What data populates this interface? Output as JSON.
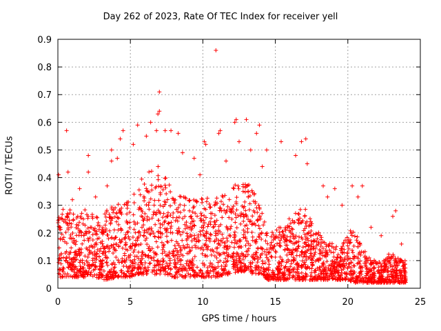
{
  "chart_data": {
    "type": "scatter",
    "title": "Day 262 of 2023, Rate Of TEC Index for receiver yell",
    "xlabel": "GPS time / hours",
    "ylabel": "ROTI / TECUs",
    "xlim": [
      0,
      25
    ],
    "ylim": [
      0,
      0.9
    ],
    "xticks": [
      0,
      5,
      10,
      15,
      20,
      25
    ],
    "yticks": [
      0,
      0.1,
      0.2,
      0.3,
      0.4,
      0.5,
      0.6,
      0.7,
      0.8,
      0.9
    ],
    "grid": true,
    "marker": "+",
    "color": "#ff0000",
    "series": [
      {
        "points": [
          [
            0.05,
            0.41
          ],
          [
            0.3,
            0.25
          ],
          [
            0.6,
            0.57
          ],
          [
            0.7,
            0.42
          ],
          [
            1.0,
            0.32
          ],
          [
            1.5,
            0.36
          ],
          [
            2.1,
            0.48
          ],
          [
            2.1,
            0.42
          ],
          [
            2.6,
            0.33
          ],
          [
            3.4,
            0.37
          ],
          [
            3.7,
            0.5
          ],
          [
            3.7,
            0.46
          ],
          [
            4.1,
            0.47
          ],
          [
            4.3,
            0.54
          ],
          [
            4.5,
            0.57
          ],
          [
            5.2,
            0.52
          ],
          [
            5.5,
            0.59
          ],
          [
            6.1,
            0.55
          ],
          [
            6.4,
            0.6
          ],
          [
            6.8,
            0.57
          ],
          [
            6.9,
            0.63
          ],
          [
            7.0,
            0.64
          ],
          [
            7.0,
            0.71
          ],
          [
            7.4,
            0.57
          ],
          [
            7.8,
            0.57
          ],
          [
            8.3,
            0.56
          ],
          [
            8.6,
            0.49
          ],
          [
            9.4,
            0.47
          ],
          [
            9.8,
            0.41
          ],
          [
            10.1,
            0.53
          ],
          [
            10.2,
            0.52
          ],
          [
            10.9,
            0.86
          ],
          [
            11.1,
            0.56
          ],
          [
            11.2,
            0.57
          ],
          [
            11.6,
            0.46
          ],
          [
            12.2,
            0.6
          ],
          [
            12.3,
            0.61
          ],
          [
            12.5,
            0.53
          ],
          [
            13.0,
            0.61
          ],
          [
            13.3,
            0.5
          ],
          [
            13.7,
            0.56
          ],
          [
            13.9,
            0.59
          ],
          [
            14.4,
            0.5
          ],
          [
            14.1,
            0.44
          ],
          [
            15.4,
            0.53
          ],
          [
            16.4,
            0.48
          ],
          [
            16.8,
            0.53
          ],
          [
            17.1,
            0.54
          ],
          [
            17.2,
            0.45
          ],
          [
            18.3,
            0.37
          ],
          [
            18.6,
            0.33
          ],
          [
            19.1,
            0.36
          ],
          [
            19.6,
            0.3
          ],
          [
            20.3,
            0.37
          ],
          [
            20.7,
            0.33
          ],
          [
            21.0,
            0.37
          ],
          [
            21.6,
            0.22
          ],
          [
            22.3,
            0.19
          ],
          [
            23.1,
            0.26
          ],
          [
            23.3,
            0.28
          ],
          [
            23.7,
            0.16
          ],
          [
            0.15,
            0.05
          ],
          [
            0.4,
            0.07
          ],
          [
            0.8,
            0.09
          ],
          [
            1.3,
            0.12
          ],
          [
            1.7,
            0.05
          ],
          [
            2.4,
            0.15
          ],
          [
            2.9,
            0.08
          ],
          [
            3.3,
            0.13
          ],
          [
            3.9,
            0.06
          ],
          [
            4.6,
            0.18
          ],
          [
            5.0,
            0.1
          ],
          [
            5.8,
            0.22
          ],
          [
            6.3,
            0.15
          ],
          [
            7.3,
            0.27
          ],
          [
            7.9,
            0.2
          ],
          [
            8.5,
            0.14
          ],
          [
            9.1,
            0.22
          ],
          [
            9.7,
            0.17
          ],
          [
            10.5,
            0.24
          ],
          [
            11.4,
            0.18
          ],
          [
            12.0,
            0.25
          ],
          [
            12.8,
            0.21
          ],
          [
            13.5,
            0.28
          ],
          [
            14.0,
            0.12
          ],
          [
            14.6,
            0.05
          ],
          [
            15.2,
            0.08
          ],
          [
            15.8,
            0.12
          ],
          [
            16.5,
            0.09
          ],
          [
            17.4,
            0.14
          ],
          [
            18.0,
            0.1
          ],
          [
            18.8,
            0.07
          ],
          [
            19.5,
            0.11
          ],
          [
            20.2,
            0.06
          ],
          [
            20.9,
            0.08
          ],
          [
            21.7,
            0.05
          ],
          [
            22.5,
            0.07
          ],
          [
            23.2,
            0.04
          ],
          [
            23.9,
            0.06
          ]
        ]
      }
    ],
    "cloud": {
      "description_free": true,
      "envelope": [
        [
          0,
          0.04,
          0.26
        ],
        [
          0.5,
          0.04,
          0.3
        ],
        [
          1,
          0.04,
          0.28
        ],
        [
          1.5,
          0.04,
          0.26
        ],
        [
          2,
          0.04,
          0.3
        ],
        [
          2.5,
          0.04,
          0.28
        ],
        [
          3,
          0.03,
          0.24
        ],
        [
          3.5,
          0.03,
          0.3
        ],
        [
          4,
          0.04,
          0.3
        ],
        [
          4.5,
          0.04,
          0.32
        ],
        [
          5,
          0.04,
          0.34
        ],
        [
          5.5,
          0.05,
          0.38
        ],
        [
          6,
          0.05,
          0.42
        ],
        [
          6.5,
          0.05,
          0.44
        ],
        [
          7,
          0.05,
          0.46
        ],
        [
          7.5,
          0.05,
          0.4
        ],
        [
          8,
          0.04,
          0.34
        ],
        [
          8.5,
          0.04,
          0.34
        ],
        [
          9,
          0.04,
          0.32
        ],
        [
          9.5,
          0.04,
          0.32
        ],
        [
          10,
          0.04,
          0.34
        ],
        [
          10.5,
          0.04,
          0.32
        ],
        [
          11,
          0.04,
          0.34
        ],
        [
          11.5,
          0.05,
          0.34
        ],
        [
          12,
          0.05,
          0.36
        ],
        [
          12.5,
          0.06,
          0.4
        ],
        [
          13,
          0.06,
          0.4
        ],
        [
          13.5,
          0.05,
          0.36
        ],
        [
          14,
          0.05,
          0.3
        ],
        [
          14.5,
          0.03,
          0.2
        ],
        [
          15,
          0.03,
          0.22
        ],
        [
          15.5,
          0.03,
          0.22
        ],
        [
          16,
          0.03,
          0.26
        ],
        [
          16.5,
          0.03,
          0.28
        ],
        [
          17,
          0.03,
          0.3
        ],
        [
          17.5,
          0.03,
          0.26
        ],
        [
          18,
          0.03,
          0.2
        ],
        [
          18.5,
          0.03,
          0.18
        ],
        [
          19,
          0.03,
          0.16
        ],
        [
          19.5,
          0.03,
          0.14
        ],
        [
          20,
          0.03,
          0.2
        ],
        [
          20.5,
          0.02,
          0.24
        ],
        [
          21,
          0.02,
          0.14
        ],
        [
          21.5,
          0.02,
          0.12
        ],
        [
          22,
          0.02,
          0.1
        ],
        [
          22.5,
          0.02,
          0.1
        ],
        [
          23,
          0.02,
          0.14
        ],
        [
          23.5,
          0.02,
          0.12
        ],
        [
          24,
          0.02,
          0.1
        ]
      ],
      "count": 2600
    }
  }
}
